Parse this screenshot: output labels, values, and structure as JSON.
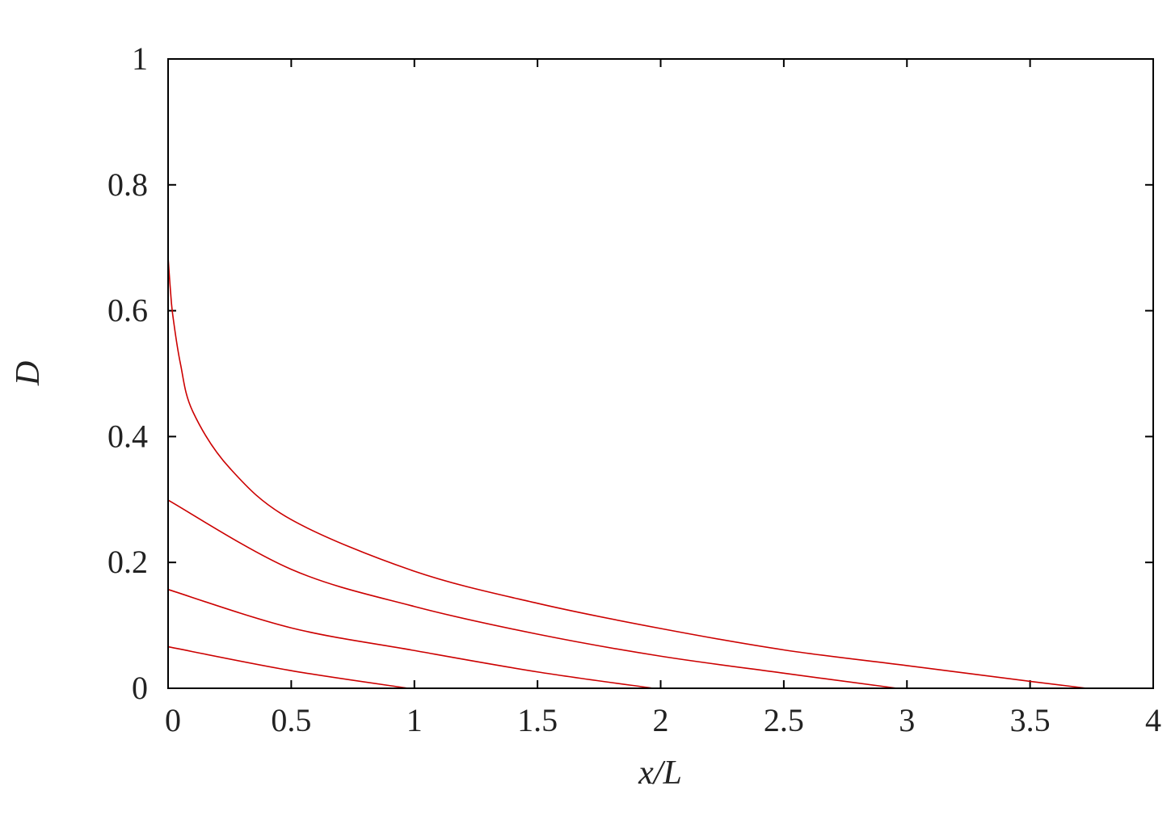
{
  "chart_data": {
    "type": "line",
    "title": "",
    "xlabel": "x/L",
    "ylabel": "D",
    "xlim": [
      0,
      4
    ],
    "ylim": [
      0,
      1
    ],
    "xticks": [
      "0",
      "0.5",
      "1",
      "1.5",
      "2",
      "2.5",
      "3",
      "3.5",
      "4"
    ],
    "yticks": [
      "0",
      "0.2",
      "0.4",
      "0.6",
      "0.8",
      "1"
    ],
    "grid": false,
    "legend": "none",
    "line_color": "#cc0000",
    "series": [
      {
        "x": [
          0,
          0.01,
          0.02,
          0.05,
          0.1,
          0.25,
          0.5,
          1,
          1.5,
          2,
          2.5,
          3,
          3.5,
          3.73
        ],
        "y": [
          0.685,
          0.63,
          0.59,
          0.516,
          0.44,
          0.35,
          0.268,
          0.186,
          0.135,
          0.095,
          0.061,
          0.036,
          0.011,
          0
        ]
      },
      {
        "x": [
          0,
          0.5,
          1,
          1.5,
          2,
          2.5,
          2.96
        ],
        "y": [
          0.299,
          0.189,
          0.13,
          0.086,
          0.051,
          0.024,
          0
        ]
      },
      {
        "x": [
          0,
          0.5,
          1,
          1.5,
          1.97
        ],
        "y": [
          0.157,
          0.096,
          0.06,
          0.026,
          0
        ]
      },
      {
        "x": [
          0,
          0.5,
          0.975
        ],
        "y": [
          0.066,
          0.028,
          0
        ]
      }
    ]
  }
}
